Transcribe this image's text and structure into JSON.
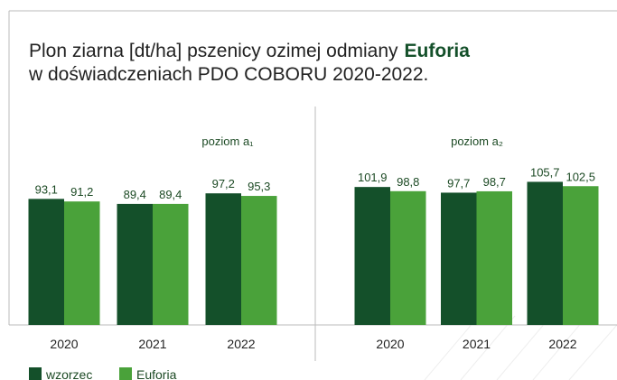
{
  "title": [
    "Plon ziarna [dt/ha] pszenicy ozimej odmiany",
    "Euforia",
    "w doświadczeniach PDO COBORU 2020-2022."
  ],
  "chart_data": [
    {
      "type": "bar",
      "subtitle": "poziom a₁",
      "categories": [
        "2020",
        "2021",
        "2022"
      ],
      "ylim": [
        0,
        150
      ],
      "series": [
        {
          "name": "wzorzec",
          "color": "#14502a",
          "values": [
            93.1,
            89.4,
            97.2
          ],
          "value_labels": [
            "93,1",
            "89,4",
            "97,2"
          ]
        },
        {
          "name": "Euforia",
          "color": "#4aa23a",
          "values": [
            91.2,
            89.4,
            95.3
          ],
          "value_labels": [
            "91,2",
            "89,4",
            "95,3"
          ]
        }
      ]
    },
    {
      "type": "bar",
      "subtitle": "poziom a₂",
      "categories": [
        "2020",
        "2021",
        "2022"
      ],
      "ylim": [
        0,
        150
      ],
      "series": [
        {
          "name": "wzorzec",
          "color": "#14502a",
          "values": [
            101.9,
            97.7,
            105.7
          ],
          "value_labels": [
            "101,9",
            "97,7",
            "105,7"
          ]
        },
        {
          "name": "Euforia",
          "color": "#4aa23a",
          "values": [
            98.8,
            98.7,
            102.5
          ],
          "value_labels": [
            "98,8",
            "98,7",
            "102,5"
          ]
        }
      ]
    }
  ]
}
